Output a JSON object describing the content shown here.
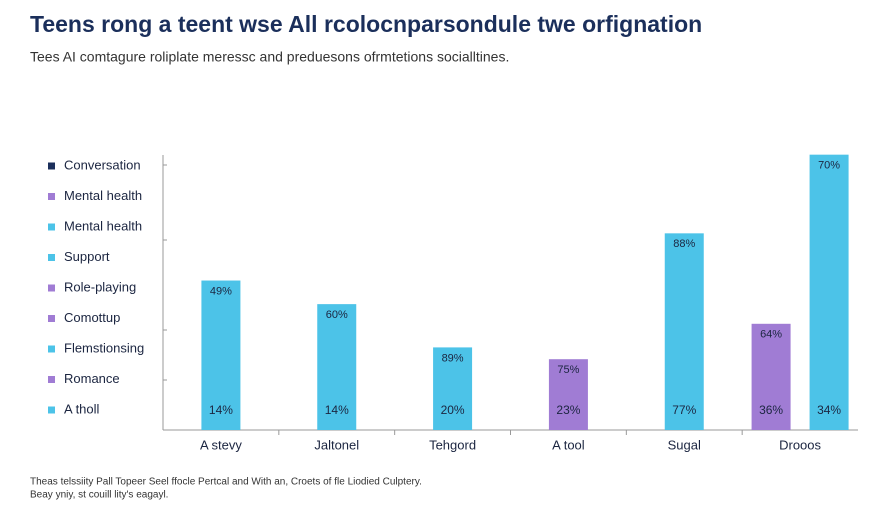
{
  "chart_data": {
    "type": "bar",
    "title": "Teens rong a teent wse All rcolocnparsondule twe orfignation",
    "subtitle": "Tees AI comtagure roliplate meressc and preduesons ofrmtetions socialltines.",
    "categories": [
      "A stevy",
      "Jaltonel",
      "Tehgord",
      "A tool",
      "Sugal",
      "Drooos"
    ],
    "series": [
      {
        "color": "#4cc3e8",
        "values": [
          38,
          32,
          21,
          null,
          50,
          70
        ],
        "top_labels": [
          "49%",
          "60%",
          "89%",
          null,
          "88%",
          "70%"
        ],
        "bottom_labels": [
          "14%",
          "14%",
          "20%",
          null,
          "77%",
          "34%"
        ]
      },
      {
        "color": "#a07cd4",
        "values": [
          null,
          null,
          null,
          18,
          null,
          27
        ],
        "top_labels": [
          null,
          null,
          null,
          "75%",
          null,
          "64%"
        ],
        "bottom_labels": [
          null,
          null,
          null,
          "23%",
          null,
          "36%"
        ]
      }
    ],
    "legend": [
      {
        "name": "Conversation",
        "color": "#1b2f5b"
      },
      {
        "name": "Mental health",
        "color": "#a07cd4"
      },
      {
        "name": "Mental health",
        "color": "#4cc3e8"
      },
      {
        "name": "Support",
        "color": "#4cc3e8"
      },
      {
        "name": "Role-playing",
        "color": "#a07cd4"
      },
      {
        "name": "Comottup",
        "color": "#a07cd4"
      },
      {
        "name": "Flemstionsing",
        "color": "#4cc3e8"
      },
      {
        "name": "Romance",
        "color": "#a07cd4"
      },
      {
        "name": "A tholl",
        "color": "#4cc3e8"
      }
    ],
    "ylim": [
      0,
      75
    ],
    "notes": [
      "Theas telssiity Pall Topeer Seel ffocle Pertcal and With an, Croets of fle Liodied Culptery.",
      "Beay yniy, st couill lity's eagayl."
    ]
  }
}
